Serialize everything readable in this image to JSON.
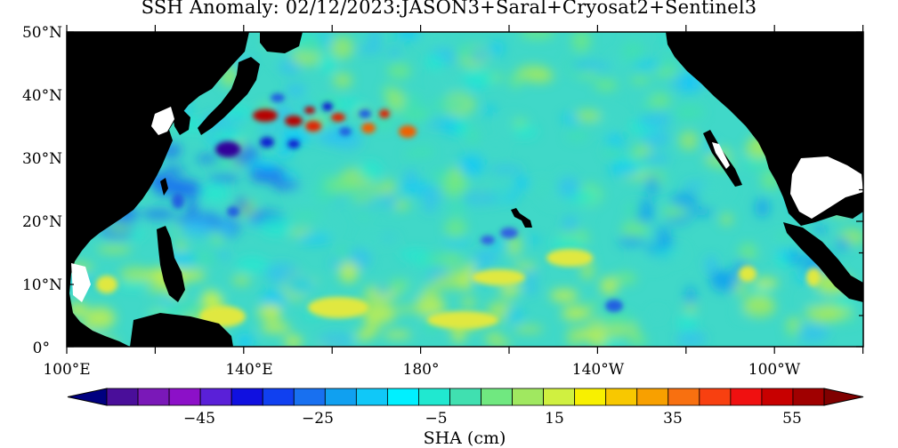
{
  "title": "SSH Anomaly: 02/12/2023:JASON3+Saral+Cryosat2+Sentinel3",
  "map": {
    "lat_labels": [
      "50°N",
      "40°N",
      "30°N",
      "20°N",
      "10°N",
      "0°"
    ],
    "lon_labels": [
      "100°E",
      "140°E",
      "180°",
      "140°W",
      "100°W"
    ],
    "land_color": "#000000",
    "background_color": "#40d8c8"
  },
  "colorbar": {
    "label": "SHA (cm)",
    "tick_labels": [
      "−45",
      "−25",
      "−5",
      "15",
      "35",
      "55"
    ],
    "colors": [
      "#000080",
      "#4a0e9a",
      "#7a18b8",
      "#8c10c8",
      "#5a20d8",
      "#1010e0",
      "#1040f0",
      "#1870f0",
      "#10a0f0",
      "#10c8f8",
      "#00f0ff",
      "#20e8d0",
      "#40e0b0",
      "#70e880",
      "#a0e860",
      "#d0f040",
      "#f8f000",
      "#f8c800",
      "#f8a000",
      "#f87010",
      "#f84010",
      "#f01010",
      "#c80000",
      "#a00000",
      "#800000"
    ]
  },
  "anomalies": [
    {
      "name": "kuroshio-high-1",
      "color": "#b80000"
    },
    {
      "name": "kuroshio-high-2",
      "color": "#e02000"
    },
    {
      "name": "kuroshio-high-3",
      "color": "#f06000"
    },
    {
      "name": "kuroshio-low-1",
      "color": "#30009a"
    },
    {
      "name": "kuroshio-low-2",
      "color": "#1020d0"
    },
    {
      "name": "kuroshio-low-3",
      "color": "#2060e0"
    },
    {
      "name": "yellow-band",
      "color": "#e0e840"
    },
    {
      "name": "hawaii-low",
      "color": "#3060e0"
    }
  ]
}
